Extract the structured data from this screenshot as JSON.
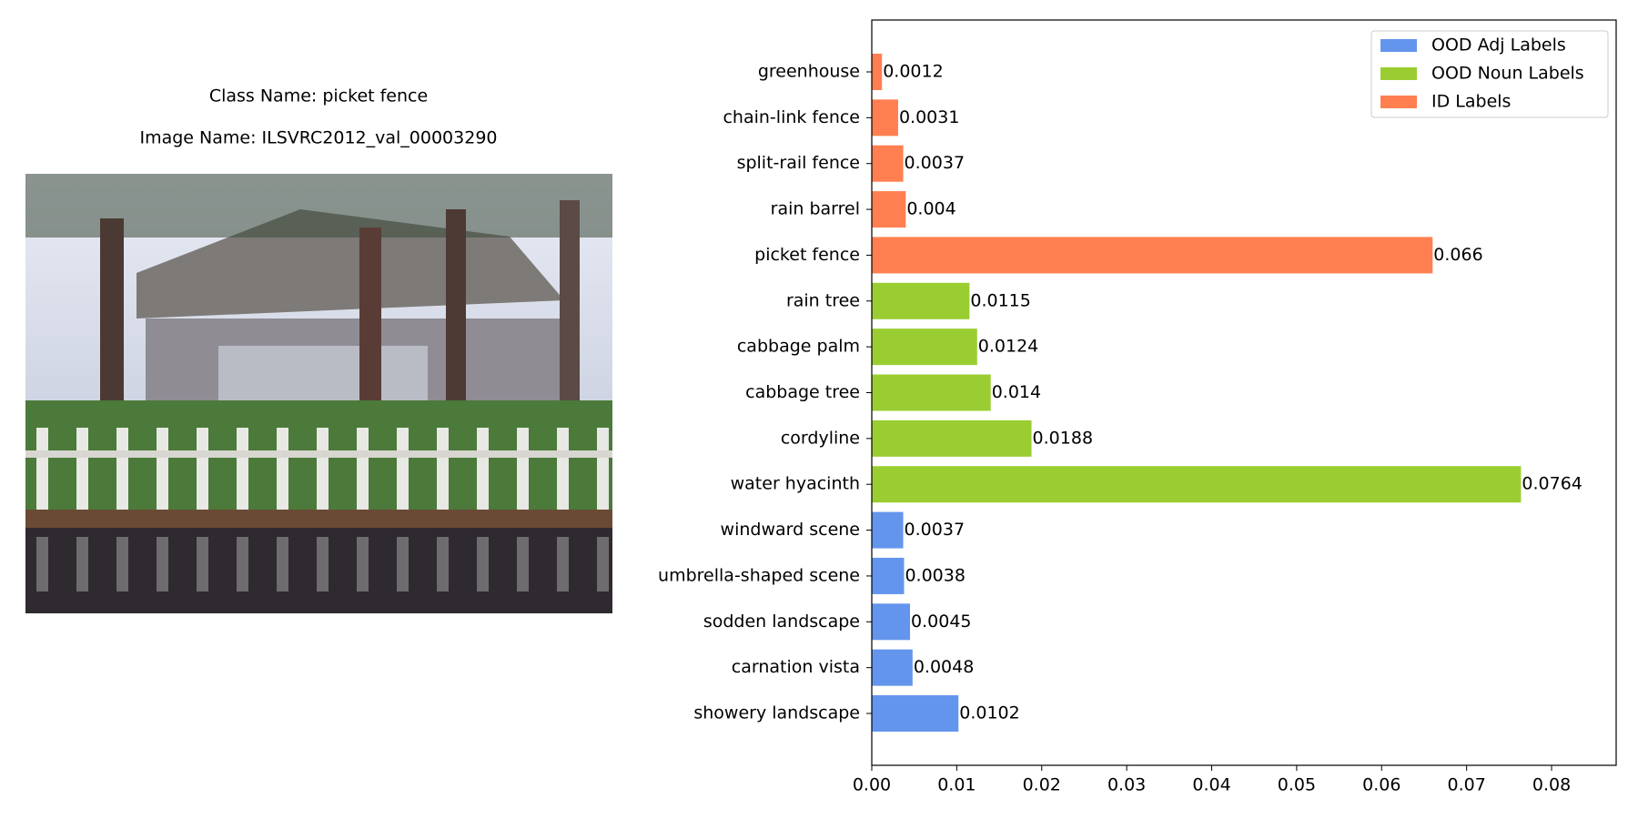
{
  "image_panel": {
    "class_name": "Class Name: picket fence",
    "image_name": "Image Name: ILSVRC2012_val_00003290"
  },
  "chart_data": {
    "type": "barh",
    "categories": [
      "greenhouse",
      "chain-link fence",
      "split-rail fence",
      "rain barrel",
      "picket fence",
      "rain tree",
      "cabbage palm",
      "cabbage tree",
      "cordyline",
      "water hyacinth",
      "windward scene",
      "umbrella-shaped scene",
      "sodden landscape",
      "carnation vista",
      "showery landscape"
    ],
    "series": [
      {
        "name": "OOD Adj Labels",
        "color": "#6495ed",
        "values": [
          null,
          null,
          null,
          null,
          null,
          null,
          null,
          null,
          null,
          null,
          0.0037,
          0.0038,
          0.0045,
          0.0048,
          0.0102
        ]
      },
      {
        "name": "OOD Noun Labels",
        "color": "#9acd32",
        "values": [
          null,
          null,
          null,
          null,
          null,
          0.0115,
          0.0124,
          0.014,
          0.0188,
          0.0764,
          null,
          null,
          null,
          null,
          null
        ]
      },
      {
        "name": "ID Labels",
        "color": "#ff7f50",
        "values": [
          0.0012,
          0.0031,
          0.0037,
          0.004,
          0.066,
          null,
          null,
          null,
          null,
          null,
          null,
          null,
          null,
          null,
          null
        ]
      }
    ],
    "xlim": [
      0,
      0.0876
    ],
    "xticks": [
      {
        "value": 0,
        "label": "0.00"
      },
      {
        "value": 0.01,
        "label": "0.01"
      },
      {
        "value": 0.02,
        "label": "0.02"
      },
      {
        "value": 0.03,
        "label": "0.03"
      },
      {
        "value": 0.04,
        "label": "0.04"
      },
      {
        "value": 0.05,
        "label": "0.05"
      },
      {
        "value": 0.06,
        "label": "0.06"
      },
      {
        "value": 0.07,
        "label": "0.07"
      },
      {
        "value": 0.08,
        "label": "0.08"
      }
    ],
    "legend": "upper right"
  }
}
